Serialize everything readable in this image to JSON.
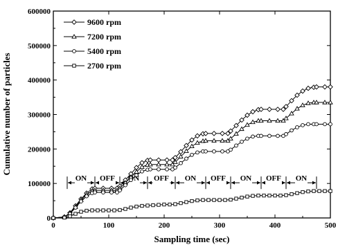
{
  "chart_data": {
    "type": "line",
    "xlabel": "Sampling time (sec)",
    "ylabel": "Cumulative number of particles",
    "xlim": [
      0,
      500
    ],
    "ylim": [
      0,
      600000
    ],
    "x_ticks": [
      0,
      100,
      200,
      300,
      400,
      500
    ],
    "x_tick_labels": [
      "0",
      "100",
      "200",
      "300",
      "400",
      "500"
    ],
    "y_ticks": [
      0,
      100000,
      200000,
      300000,
      400000,
      500000,
      600000
    ],
    "y_tick_labels": [
      "0",
      "100000",
      "200000",
      "300000",
      "400000",
      "500000",
      "600000"
    ],
    "grid": false,
    "legend_position": "top-left",
    "series": [
      {
        "name": "9600 rpm",
        "marker": "diamond",
        "x": [
          0,
          20,
          30,
          40,
          50,
          60,
          70,
          75,
          90,
          105,
          115,
          120,
          130,
          140,
          150,
          160,
          170,
          175,
          190,
          205,
          215,
          220,
          230,
          240,
          250,
          260,
          270,
          275,
          290,
          305,
          315,
          320,
          330,
          340,
          350,
          360,
          370,
          375,
          390,
          405,
          415,
          420,
          430,
          440,
          450,
          460,
          470,
          475,
          490,
          500
        ],
        "y": [
          0,
          3000,
          15000,
          35000,
          55000,
          72000,
          84000,
          86000,
          86000,
          86000,
          86000,
          92000,
          110000,
          128000,
          146000,
          160000,
          167000,
          168000,
          168000,
          168000,
          168000,
          175000,
          192000,
          210000,
          226000,
          238000,
          244000,
          245000,
          245000,
          245000,
          245000,
          252000,
          268000,
          284000,
          298000,
          308000,
          314000,
          315000,
          315000,
          315000,
          315000,
          323000,
          340000,
          356000,
          368000,
          376000,
          379000,
          380000,
          380000,
          380000
        ]
      },
      {
        "name": "7200 rpm",
        "marker": "triangle",
        "x": [
          0,
          20,
          30,
          40,
          50,
          60,
          70,
          75,
          90,
          105,
          115,
          120,
          130,
          140,
          150,
          160,
          170,
          175,
          190,
          205,
          215,
          220,
          230,
          240,
          250,
          260,
          270,
          275,
          290,
          305,
          315,
          320,
          330,
          340,
          350,
          360,
          370,
          375,
          390,
          405,
          415,
          420,
          430,
          440,
          450,
          460,
          470,
          475,
          490,
          500
        ],
        "y": [
          0,
          2500,
          13000,
          32000,
          52000,
          68000,
          78000,
          80000,
          80000,
          80000,
          80000,
          86000,
          102000,
          118000,
          134000,
          148000,
          154000,
          155000,
          155000,
          155000,
          155000,
          162000,
          178000,
          194000,
          208000,
          218000,
          223000,
          224000,
          224000,
          224000,
          224000,
          230000,
          244000,
          258000,
          270000,
          278000,
          282000,
          282000,
          282000,
          282000,
          282000,
          289000,
          303000,
          317000,
          327000,
          333000,
          335000,
          335000,
          335000,
          335000
        ]
      },
      {
        "name": "5400 rpm",
        "marker": "circle",
        "x": [
          0,
          20,
          30,
          40,
          50,
          60,
          70,
          75,
          90,
          105,
          115,
          120,
          130,
          140,
          150,
          160,
          170,
          175,
          190,
          205,
          215,
          220,
          230,
          240,
          250,
          260,
          270,
          275,
          290,
          305,
          315,
          320,
          330,
          340,
          350,
          360,
          370,
          375,
          390,
          405,
          415,
          420,
          430,
          440,
          450,
          460,
          470,
          475,
          490,
          500
        ],
        "y": [
          0,
          2500,
          12000,
          30000,
          48000,
          63000,
          72000,
          74000,
          74000,
          74000,
          74000,
          80000,
          95000,
          110000,
          124000,
          135000,
          140000,
          141000,
          141000,
          141000,
          141000,
          146000,
          159000,
          172000,
          183000,
          190000,
          193000,
          193000,
          193000,
          193000,
          193000,
          198000,
          210000,
          221000,
          230000,
          236000,
          238000,
          238000,
          238000,
          238000,
          238000,
          243000,
          254000,
          263000,
          269000,
          272000,
          272000,
          272000,
          272000,
          272000
        ]
      },
      {
        "name": "2700 rpm",
        "marker": "square",
        "x": [
          0,
          20,
          30,
          40,
          50,
          60,
          70,
          80,
          90,
          100,
          110,
          120,
          130,
          140,
          150,
          160,
          170,
          180,
          190,
          200,
          210,
          220,
          230,
          240,
          250,
          260,
          270,
          280,
          290,
          300,
          310,
          320,
          330,
          340,
          350,
          360,
          370,
          380,
          390,
          400,
          410,
          420,
          430,
          440,
          450,
          460,
          470,
          480,
          490,
          500
        ],
        "y": [
          0,
          1000,
          5000,
          12000,
          18000,
          21000,
          22000,
          22000,
          22000,
          22000,
          22000,
          23000,
          26000,
          30000,
          33000,
          35000,
          36000,
          37000,
          38000,
          39000,
          39000,
          40000,
          43000,
          46000,
          49000,
          51000,
          52000,
          52000,
          52000,
          52000,
          52000,
          53000,
          56000,
          59000,
          62000,
          64000,
          65000,
          65000,
          65000,
          65000,
          65000,
          66000,
          69000,
          72000,
          75000,
          77000,
          78000,
          78000,
          78000,
          78000
        ]
      }
    ],
    "annotations": {
      "bar_y": 102000,
      "phases": [
        {
          "label": "ON",
          "start": 25,
          "end": 75
        },
        {
          "label": "OFF",
          "start": 75,
          "end": 120
        },
        {
          "label": "ON",
          "start": 120,
          "end": 170
        },
        {
          "label": "OFF",
          "start": 170,
          "end": 220
        },
        {
          "label": "ON",
          "start": 220,
          "end": 275
        },
        {
          "label": "OFF",
          "start": 275,
          "end": 320
        },
        {
          "label": "ON",
          "start": 320,
          "end": 375
        },
        {
          "label": "OFF",
          "start": 375,
          "end": 420
        },
        {
          "label": "ON",
          "start": 420,
          "end": 475
        }
      ]
    }
  }
}
